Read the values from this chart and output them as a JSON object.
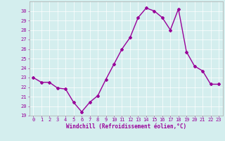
{
  "x": [
    0,
    1,
    2,
    3,
    4,
    5,
    6,
    7,
    8,
    9,
    10,
    11,
    12,
    13,
    14,
    15,
    16,
    17,
    18,
    19,
    20,
    21,
    22,
    23
  ],
  "y": [
    23.0,
    22.5,
    22.5,
    21.9,
    21.8,
    20.4,
    19.4,
    20.4,
    21.1,
    22.8,
    24.4,
    26.0,
    27.2,
    29.3,
    30.3,
    30.0,
    29.3,
    28.0,
    30.2,
    25.7,
    24.2,
    23.7,
    22.3,
    22.3
  ],
  "line_color": "#990099",
  "marker": "D",
  "marker_size": 2.0,
  "bg_color": "#d4eeee",
  "grid_color": "#ffffff",
  "xlabel": "Windchill (Refroidissement éolien,°C)",
  "xlabel_color": "#990099",
  "tick_color": "#990099",
  "spine_color": "#aaaaaa",
  "ylim": [
    19,
    31
  ],
  "xlim": [
    -0.5,
    23.5
  ],
  "yticks": [
    19,
    20,
    21,
    22,
    23,
    24,
    25,
    26,
    27,
    28,
    29,
    30
  ],
  "xticks": [
    0,
    1,
    2,
    3,
    4,
    5,
    6,
    7,
    8,
    9,
    10,
    11,
    12,
    13,
    14,
    15,
    16,
    17,
    18,
    19,
    20,
    21,
    22,
    23
  ],
  "tick_fontsize": 5.0,
  "xlabel_fontsize": 5.5,
  "linewidth": 1.0
}
